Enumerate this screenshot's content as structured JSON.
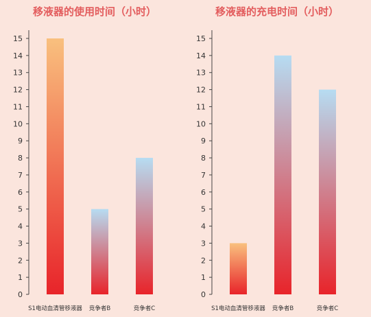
{
  "chart_data": [
    {
      "type": "bar",
      "title": "移液器的使用时间（小时）",
      "categories": [
        "S1电动血清管移液器",
        "竞争者B",
        "竞争者C"
      ],
      "values": [
        15,
        5,
        8
      ],
      "ylim": [
        0,
        15
      ],
      "yticks": [
        0,
        1,
        2,
        3,
        4,
        5,
        6,
        7,
        8,
        9,
        10,
        11,
        12,
        13,
        14,
        15
      ],
      "grid": false,
      "bar_gradients": [
        {
          "bottom": "#e8242a",
          "top": "#f9c07e"
        },
        {
          "bottom": "#e8242a",
          "top": "#b6dcf2"
        },
        {
          "bottom": "#e8242a",
          "top": "#b6dcf2"
        }
      ]
    },
    {
      "type": "bar",
      "title": "移液器的充电时间（小时）",
      "categories": [
        "S1电动血清管移液器",
        "竞争者B",
        "竞争者C"
      ],
      "values": [
        3,
        14,
        12
      ],
      "ylim": [
        0,
        15
      ],
      "yticks": [
        0,
        1,
        2,
        3,
        4,
        5,
        6,
        7,
        8,
        9,
        10,
        11,
        12,
        13,
        14,
        15
      ],
      "grid": false,
      "bar_gradients": [
        {
          "bottom": "#e8242a",
          "top": "#f9c07e"
        },
        {
          "bottom": "#e8242a",
          "top": "#b6dcf2"
        },
        {
          "bottom": "#e8242a",
          "top": "#b6dcf2"
        }
      ]
    }
  ],
  "colors": {
    "background": "#fbe5dd",
    "title": "#e35d5e",
    "axis": "#444444",
    "text": "#333333"
  }
}
